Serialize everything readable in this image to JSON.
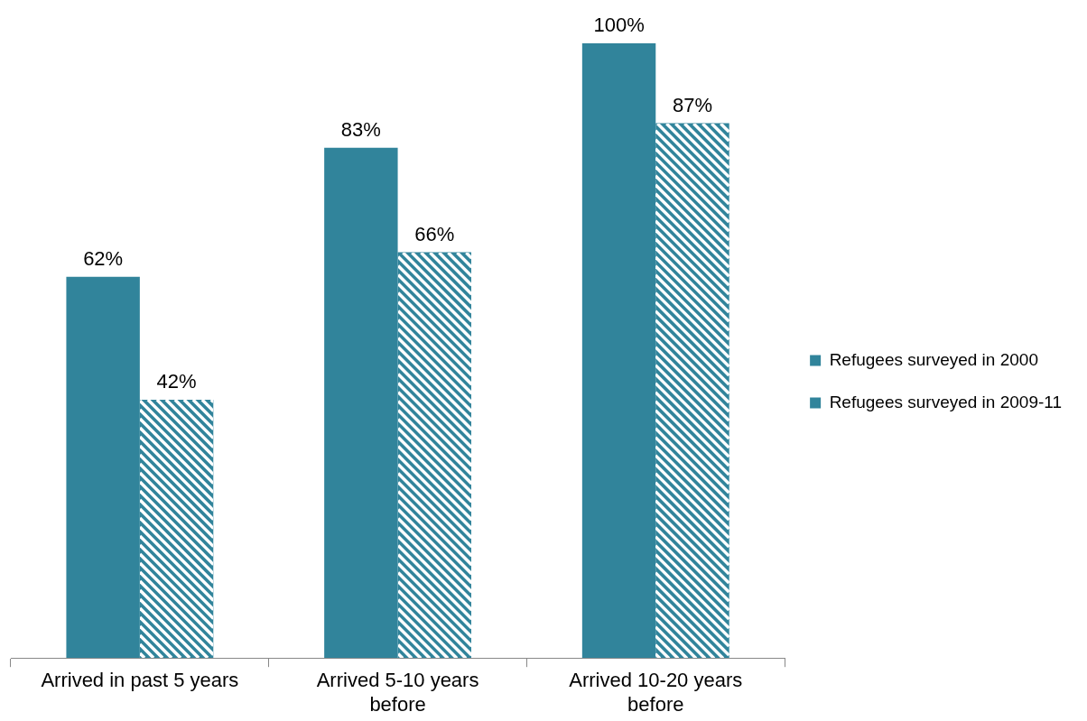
{
  "chart_data": {
    "type": "bar",
    "categories": [
      "Arrived in past 5 years",
      "Arrived 5-10 years before",
      "Arrived 10-20 years before"
    ],
    "ylim": [
      0,
      100
    ],
    "legend": "right",
    "grid": false,
    "series": [
      {
        "name": "Refugees surveyed in 2000",
        "color": "#31849b",
        "values": [
          62,
          83,
          100
        ],
        "value_labels": [
          "62%",
          "83%",
          "100%"
        ]
      },
      {
        "name": "Refugees surveyed in 2009-11",
        "color": "#31849b",
        "values": [
          42,
          66,
          87
        ],
        "value_labels": [
          "42%",
          "66%",
          "87%"
        ]
      }
    ]
  }
}
